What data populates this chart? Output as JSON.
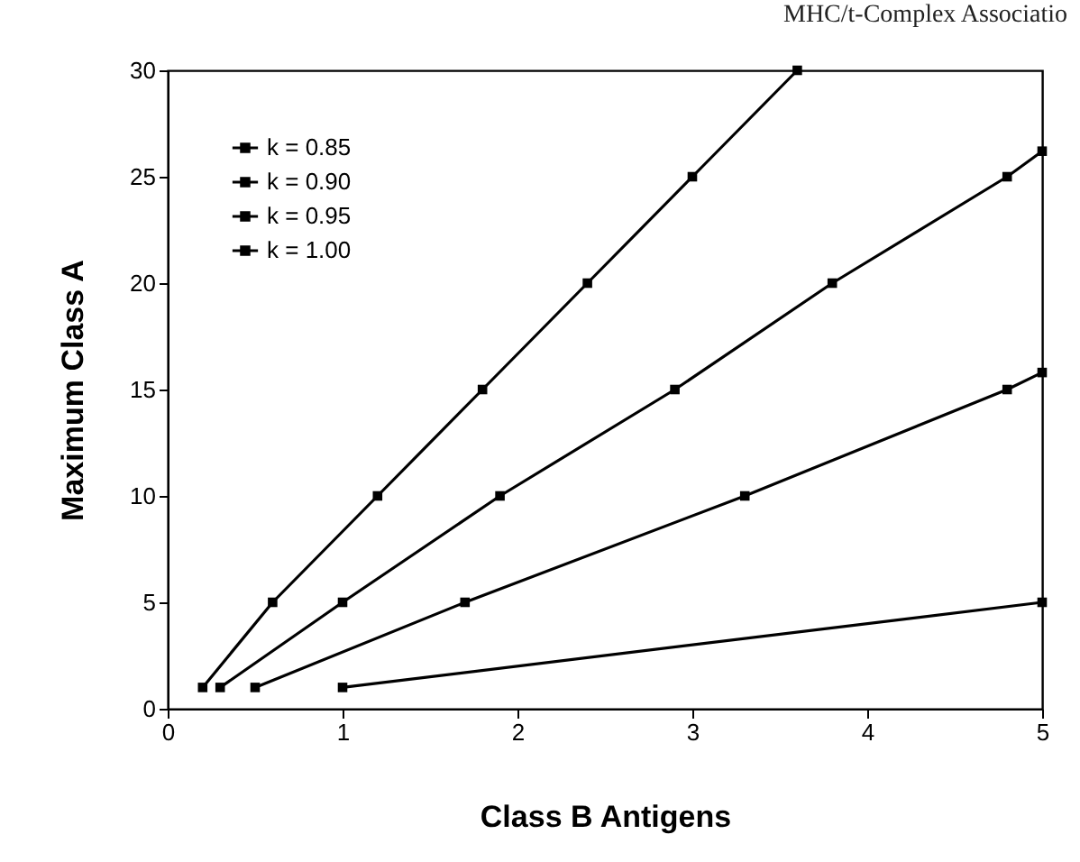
{
  "chart_data": {
    "type": "line",
    "xlabel": "Class B Antigens",
    "ylabel": "Maximum Class A",
    "annotations": [
      "MHC/t-Complex Associatio"
    ],
    "xlim": [
      0,
      5
    ],
    "ylim": [
      0,
      30
    ],
    "xticks": [
      0,
      1,
      2,
      3,
      4,
      5
    ],
    "yticks": [
      0,
      5,
      10,
      15,
      20,
      25,
      30
    ],
    "grid": false,
    "legend": "top left",
    "marker": "square",
    "line_style": "solid",
    "series": [
      {
        "name": "k = 0.85",
        "color": "#000000",
        "x": [
          0.2,
          0.6,
          1.2,
          1.8,
          2.4,
          3.0,
          3.6
        ],
        "values": [
          1,
          5,
          10,
          15,
          20,
          25,
          30
        ]
      },
      {
        "name": "k = 0.90",
        "color": "#000000",
        "x": [
          0.3,
          1.0,
          1.9,
          2.9,
          3.8,
          4.8,
          5.0
        ],
        "values": [
          1,
          5,
          10,
          15,
          20,
          25,
          26.2
        ]
      },
      {
        "name": "k = 0.95",
        "color": "#000000",
        "x": [
          0.5,
          1.7,
          3.3,
          4.8,
          5.0
        ],
        "values": [
          1,
          5,
          10,
          15,
          15.8
        ]
      },
      {
        "name": "k = 1.00",
        "color": "#000000",
        "x": [
          1.0,
          5.0
        ],
        "values": [
          1,
          5
        ]
      }
    ]
  }
}
